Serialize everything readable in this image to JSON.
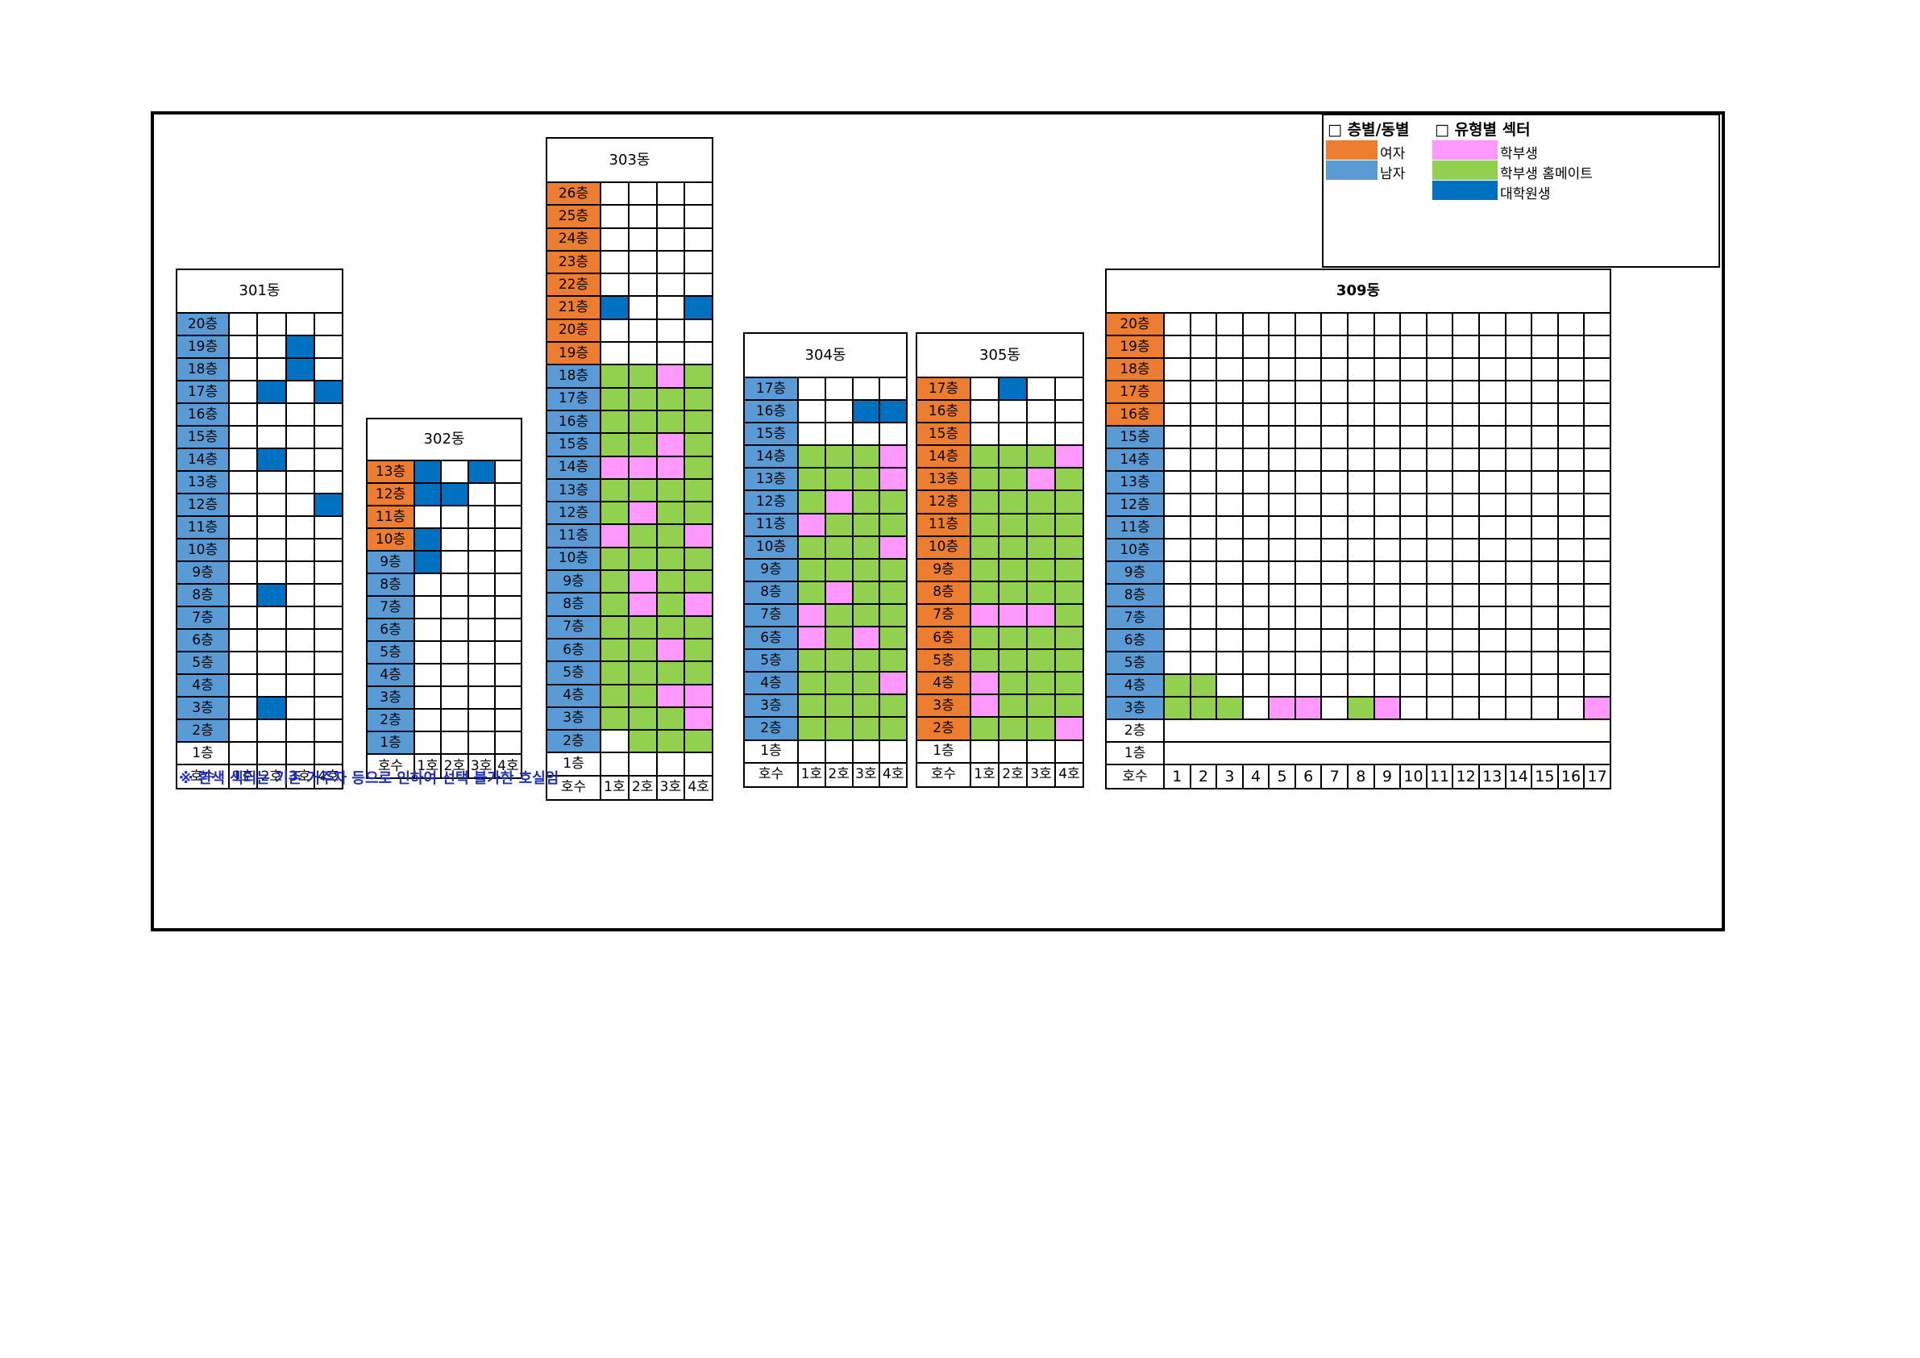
{
  "colors": {
    "female": "#ed7d31",
    "male": "#5b9bd5",
    "undergrad": "#ff99ff",
    "undergrad_homemate": "#92d050",
    "grad": "#0070c0",
    "unavailable": "#ffffff"
  },
  "legend": {
    "floor_header": "□ 층별/동별",
    "type_header": "□ 유형별 섹터",
    "floor_items": [
      {
        "label": "여자",
        "color": "female"
      },
      {
        "label": "남자",
        "color": "male"
      }
    ],
    "type_items": [
      {
        "label": "학부생",
        "color": "undergrad"
      },
      {
        "label": "학부생 홈메이트",
        "color": "undergrad_homemate"
      },
      {
        "label": "대학원생",
        "color": "grad"
      }
    ]
  },
  "note": "※ 흰색 섹터는 기존 거주자 등으로 인하여 선택 불가한 호실임",
  "buildings": [
    {
      "name": "301동",
      "header_label": "호수",
      "rooms": [
        "1호",
        "2호",
        "3호",
        "4호"
      ],
      "floors": [
        {
          "label": "20층",
          "gender": "M",
          "cells": "WWWW"
        },
        {
          "label": "19층",
          "gender": "M",
          "cells": "WWGW"
        },
        {
          "label": "18층",
          "gender": "M",
          "cells": "WWGW"
        },
        {
          "label": "17층",
          "gender": "M",
          "cells": "WGWG"
        },
        {
          "label": "16층",
          "gender": "M",
          "cells": "WWWW"
        },
        {
          "label": "15층",
          "gender": "M",
          "cells": "WWWW"
        },
        {
          "label": "14층",
          "gender": "M",
          "cells": "WGWW"
        },
        {
          "label": "13층",
          "gender": "M",
          "cells": "WWWW"
        },
        {
          "label": "12층",
          "gender": "M",
          "cells": "WWWG"
        },
        {
          "label": "11층",
          "gender": "M",
          "cells": "WWWW"
        },
        {
          "label": "10층",
          "gender": "M",
          "cells": "WWWW"
        },
        {
          "label": "9층",
          "gender": "M",
          "cells": "WWWW"
        },
        {
          "label": "8층",
          "gender": "M",
          "cells": "WGWW"
        },
        {
          "label": "7층",
          "gender": "M",
          "cells": "WWWW"
        },
        {
          "label": "6층",
          "gender": "M",
          "cells": "WWWW"
        },
        {
          "label": "5층",
          "gender": "M",
          "cells": "WWWW"
        },
        {
          "label": "4층",
          "gender": "M",
          "cells": "WWWW"
        },
        {
          "label": "3층",
          "gender": "M",
          "cells": "WGWW"
        },
        {
          "label": "2층",
          "gender": "M",
          "cells": "WWWW"
        },
        {
          "label": "1층",
          "gender": "none",
          "cells": "WWWW"
        }
      ]
    },
    {
      "name": "302동",
      "header_label": "호수",
      "rooms": [
        "1호",
        "2호",
        "3호",
        "4호"
      ],
      "floors": [
        {
          "label": "13층",
          "gender": "F",
          "cells": "GWGW"
        },
        {
          "label": "12층",
          "gender": "F",
          "cells": "GGWW"
        },
        {
          "label": "11층",
          "gender": "F",
          "cells": "WWWW"
        },
        {
          "label": "10층",
          "gender": "F",
          "cells": "GWWW"
        },
        {
          "label": "9층",
          "gender": "M",
          "cells": "GWWW"
        },
        {
          "label": "8층",
          "gender": "M",
          "cells": "WWWW"
        },
        {
          "label": "7층",
          "gender": "M",
          "cells": "WWWW"
        },
        {
          "label": "6층",
          "gender": "M",
          "cells": "WWWW"
        },
        {
          "label": "5층",
          "gender": "M",
          "cells": "WWWW"
        },
        {
          "label": "4층",
          "gender": "M",
          "cells": "WWWW"
        },
        {
          "label": "3층",
          "gender": "M",
          "cells": "WWWW"
        },
        {
          "label": "2층",
          "gender": "M",
          "cells": "WWWW"
        },
        {
          "label": "1층",
          "gender": "M",
          "cells": "WWWW"
        }
      ]
    },
    {
      "name": "303동",
      "header_label": "호수",
      "rooms": [
        "1호",
        "2호",
        "3호",
        "4호"
      ],
      "floors": [
        {
          "label": "26층",
          "gender": "F",
          "cells": "WWWW"
        },
        {
          "label": "25층",
          "gender": "F",
          "cells": "WWWW"
        },
        {
          "label": "24층",
          "gender": "F",
          "cells": "WWWW"
        },
        {
          "label": "23층",
          "gender": "F",
          "cells": "WWWW"
        },
        {
          "label": "22층",
          "gender": "F",
          "cells": "WWWW"
        },
        {
          "label": "21층",
          "gender": "F",
          "cells": "GWWG"
        },
        {
          "label": "20층",
          "gender": "F",
          "cells": "WWWW"
        },
        {
          "label": "19층",
          "gender": "F",
          "cells": "WWWW"
        },
        {
          "label": "18층",
          "gender": "M",
          "cells": "HHPH"
        },
        {
          "label": "17층",
          "gender": "M",
          "cells": "HHHH"
        },
        {
          "label": "16층",
          "gender": "M",
          "cells": "HHHH"
        },
        {
          "label": "15층",
          "gender": "M",
          "cells": "HHPH"
        },
        {
          "label": "14층",
          "gender": "M",
          "cells": "PPPH"
        },
        {
          "label": "13층",
          "gender": "M",
          "cells": "HHHH"
        },
        {
          "label": "12층",
          "gender": "M",
          "cells": "HPHH"
        },
        {
          "label": "11층",
          "gender": "M",
          "cells": "PHHP"
        },
        {
          "label": "10층",
          "gender": "M",
          "cells": "HHHH"
        },
        {
          "label": "9층",
          "gender": "M",
          "cells": "HPHH"
        },
        {
          "label": "8층",
          "gender": "M",
          "cells": "HPHP"
        },
        {
          "label": "7층",
          "gender": "M",
          "cells": "HHHH"
        },
        {
          "label": "6층",
          "gender": "M",
          "cells": "HHPH"
        },
        {
          "label": "5층",
          "gender": "M",
          "cells": "HHHH"
        },
        {
          "label": "4층",
          "gender": "M",
          "cells": "HHPP"
        },
        {
          "label": "3층",
          "gender": "M",
          "cells": "HHHP"
        },
        {
          "label": "2층",
          "gender": "M",
          "cells": "WHHH"
        },
        {
          "label": "1층",
          "gender": "none",
          "cells": "WWWW"
        }
      ]
    },
    {
      "name": "304동",
      "header_label": "호수",
      "rooms": [
        "1호",
        "2호",
        "3호",
        "4호"
      ],
      "floors": [
        {
          "label": "17층",
          "gender": "M",
          "cells": "WWWW"
        },
        {
          "label": "16층",
          "gender": "M",
          "cells": "WWGG"
        },
        {
          "label": "15층",
          "gender": "M",
          "cells": "WWWW"
        },
        {
          "label": "14층",
          "gender": "M",
          "cells": "HHHP"
        },
        {
          "label": "13층",
          "gender": "M",
          "cells": "HHHP"
        },
        {
          "label": "12층",
          "gender": "M",
          "cells": "HPHH"
        },
        {
          "label": "11층",
          "gender": "M",
          "cells": "PHHH"
        },
        {
          "label": "10층",
          "gender": "M",
          "cells": "HHHP"
        },
        {
          "label": "9층",
          "gender": "M",
          "cells": "HHHH"
        },
        {
          "label": "8층",
          "gender": "M",
          "cells": "HPHH"
        },
        {
          "label": "7층",
          "gender": "M",
          "cells": "PHHH"
        },
        {
          "label": "6층",
          "gender": "M",
          "cells": "PHPH"
        },
        {
          "label": "5층",
          "gender": "M",
          "cells": "HHHH"
        },
        {
          "label": "4층",
          "gender": "M",
          "cells": "HHHP"
        },
        {
          "label": "3층",
          "gender": "M",
          "cells": "HHHH"
        },
        {
          "label": "2층",
          "gender": "M",
          "cells": "HHHH"
        },
        {
          "label": "1층",
          "gender": "none",
          "cells": "WWWW"
        }
      ]
    },
    {
      "name": "305동",
      "header_label": "호수",
      "rooms": [
        "1호",
        "2호",
        "3호",
        "4호"
      ],
      "floors": [
        {
          "label": "17층",
          "gender": "F",
          "cells": "WGWW"
        },
        {
          "label": "16층",
          "gender": "F",
          "cells": "WWWW"
        },
        {
          "label": "15층",
          "gender": "F",
          "cells": "WWWW"
        },
        {
          "label": "14층",
          "gender": "F",
          "cells": "HHHP"
        },
        {
          "label": "13층",
          "gender": "F",
          "cells": "HHPH"
        },
        {
          "label": "12층",
          "gender": "F",
          "cells": "HHHH"
        },
        {
          "label": "11층",
          "gender": "F",
          "cells": "HHHH"
        },
        {
          "label": "10층",
          "gender": "F",
          "cells": "HHHH"
        },
        {
          "label": "9층",
          "gender": "F",
          "cells": "HHHH"
        },
        {
          "label": "8층",
          "gender": "F",
          "cells": "HHHH"
        },
        {
          "label": "7층",
          "gender": "F",
          "cells": "PPPH"
        },
        {
          "label": "6층",
          "gender": "F",
          "cells": "HHHH"
        },
        {
          "label": "5층",
          "gender": "F",
          "cells": "HHHH"
        },
        {
          "label": "4층",
          "gender": "F",
          "cells": "PHHH"
        },
        {
          "label": "3층",
          "gender": "F",
          "cells": "PHHH"
        },
        {
          "label": "2층",
          "gender": "F",
          "cells": "HHHP"
        },
        {
          "label": "1층",
          "gender": "none",
          "cells": "WWWW"
        }
      ]
    },
    {
      "name": "309동",
      "header_label": "호수",
      "rooms": [
        "1",
        "2",
        "3",
        "4",
        "5",
        "6",
        "7",
        "8",
        "9",
        "10",
        "11",
        "12",
        "13",
        "14",
        "15",
        "16",
        "17"
      ],
      "floors": [
        {
          "label": "20층",
          "gender": "F",
          "cells": "WWWWWWWWWWWWWWWWW"
        },
        {
          "label": "19층",
          "gender": "F",
          "cells": "WWWWWWWWWWWWWWWWW"
        },
        {
          "label": "18층",
          "gender": "F",
          "cells": "WWWWWWWWWWWWWWWWW"
        },
        {
          "label": "17층",
          "gender": "F",
          "cells": "WWWWWWWWWWWWWWWWW"
        },
        {
          "label": "16층",
          "gender": "F",
          "cells": "WWWWWWWWWWWWWWWWW"
        },
        {
          "label": "15층",
          "gender": "M",
          "cells": "WWWWWWWWWWWWWWWWW"
        },
        {
          "label": "14층",
          "gender": "M",
          "cells": "WWWWWWWWWWWWWWWWW"
        },
        {
          "label": "13층",
          "gender": "M",
          "cells": "WWWWWWWWWWWWWWWWW"
        },
        {
          "label": "12층",
          "gender": "M",
          "cells": "WWWWWWWWWWWWWWWWW"
        },
        {
          "label": "11층",
          "gender": "M",
          "cells": "WWWWWWWWWWWWWWWWW"
        },
        {
          "label": "10층",
          "gender": "M",
          "cells": "WWWWWWWWWWWWWWWWW"
        },
        {
          "label": "9층",
          "gender": "M",
          "cells": "WWWWWWWWWWWWWWWWW"
        },
        {
          "label": "8층",
          "gender": "M",
          "cells": "WWWWWWWWWWWWWWWWW"
        },
        {
          "label": "7층",
          "gender": "M",
          "cells": "WWWWWWWWWWWWWWWWW"
        },
        {
          "label": "6층",
          "gender": "M",
          "cells": "WWWWWWWWWWWWWWWWW"
        },
        {
          "label": "5층",
          "gender": "M",
          "cells": "WWWWWWWWWWWWWWWWW"
        },
        {
          "label": "4층",
          "gender": "M",
          "cells": "HHWWWWWWWWWWWWWWW"
        },
        {
          "label": "3층",
          "gender": "M",
          "cells": "HHHWPPWHPWWWWWWWP"
        },
        {
          "label": "2층",
          "gender": "none",
          "cells": ""
        },
        {
          "label": "1층",
          "gender": "none",
          "cells": ""
        }
      ]
    }
  ]
}
